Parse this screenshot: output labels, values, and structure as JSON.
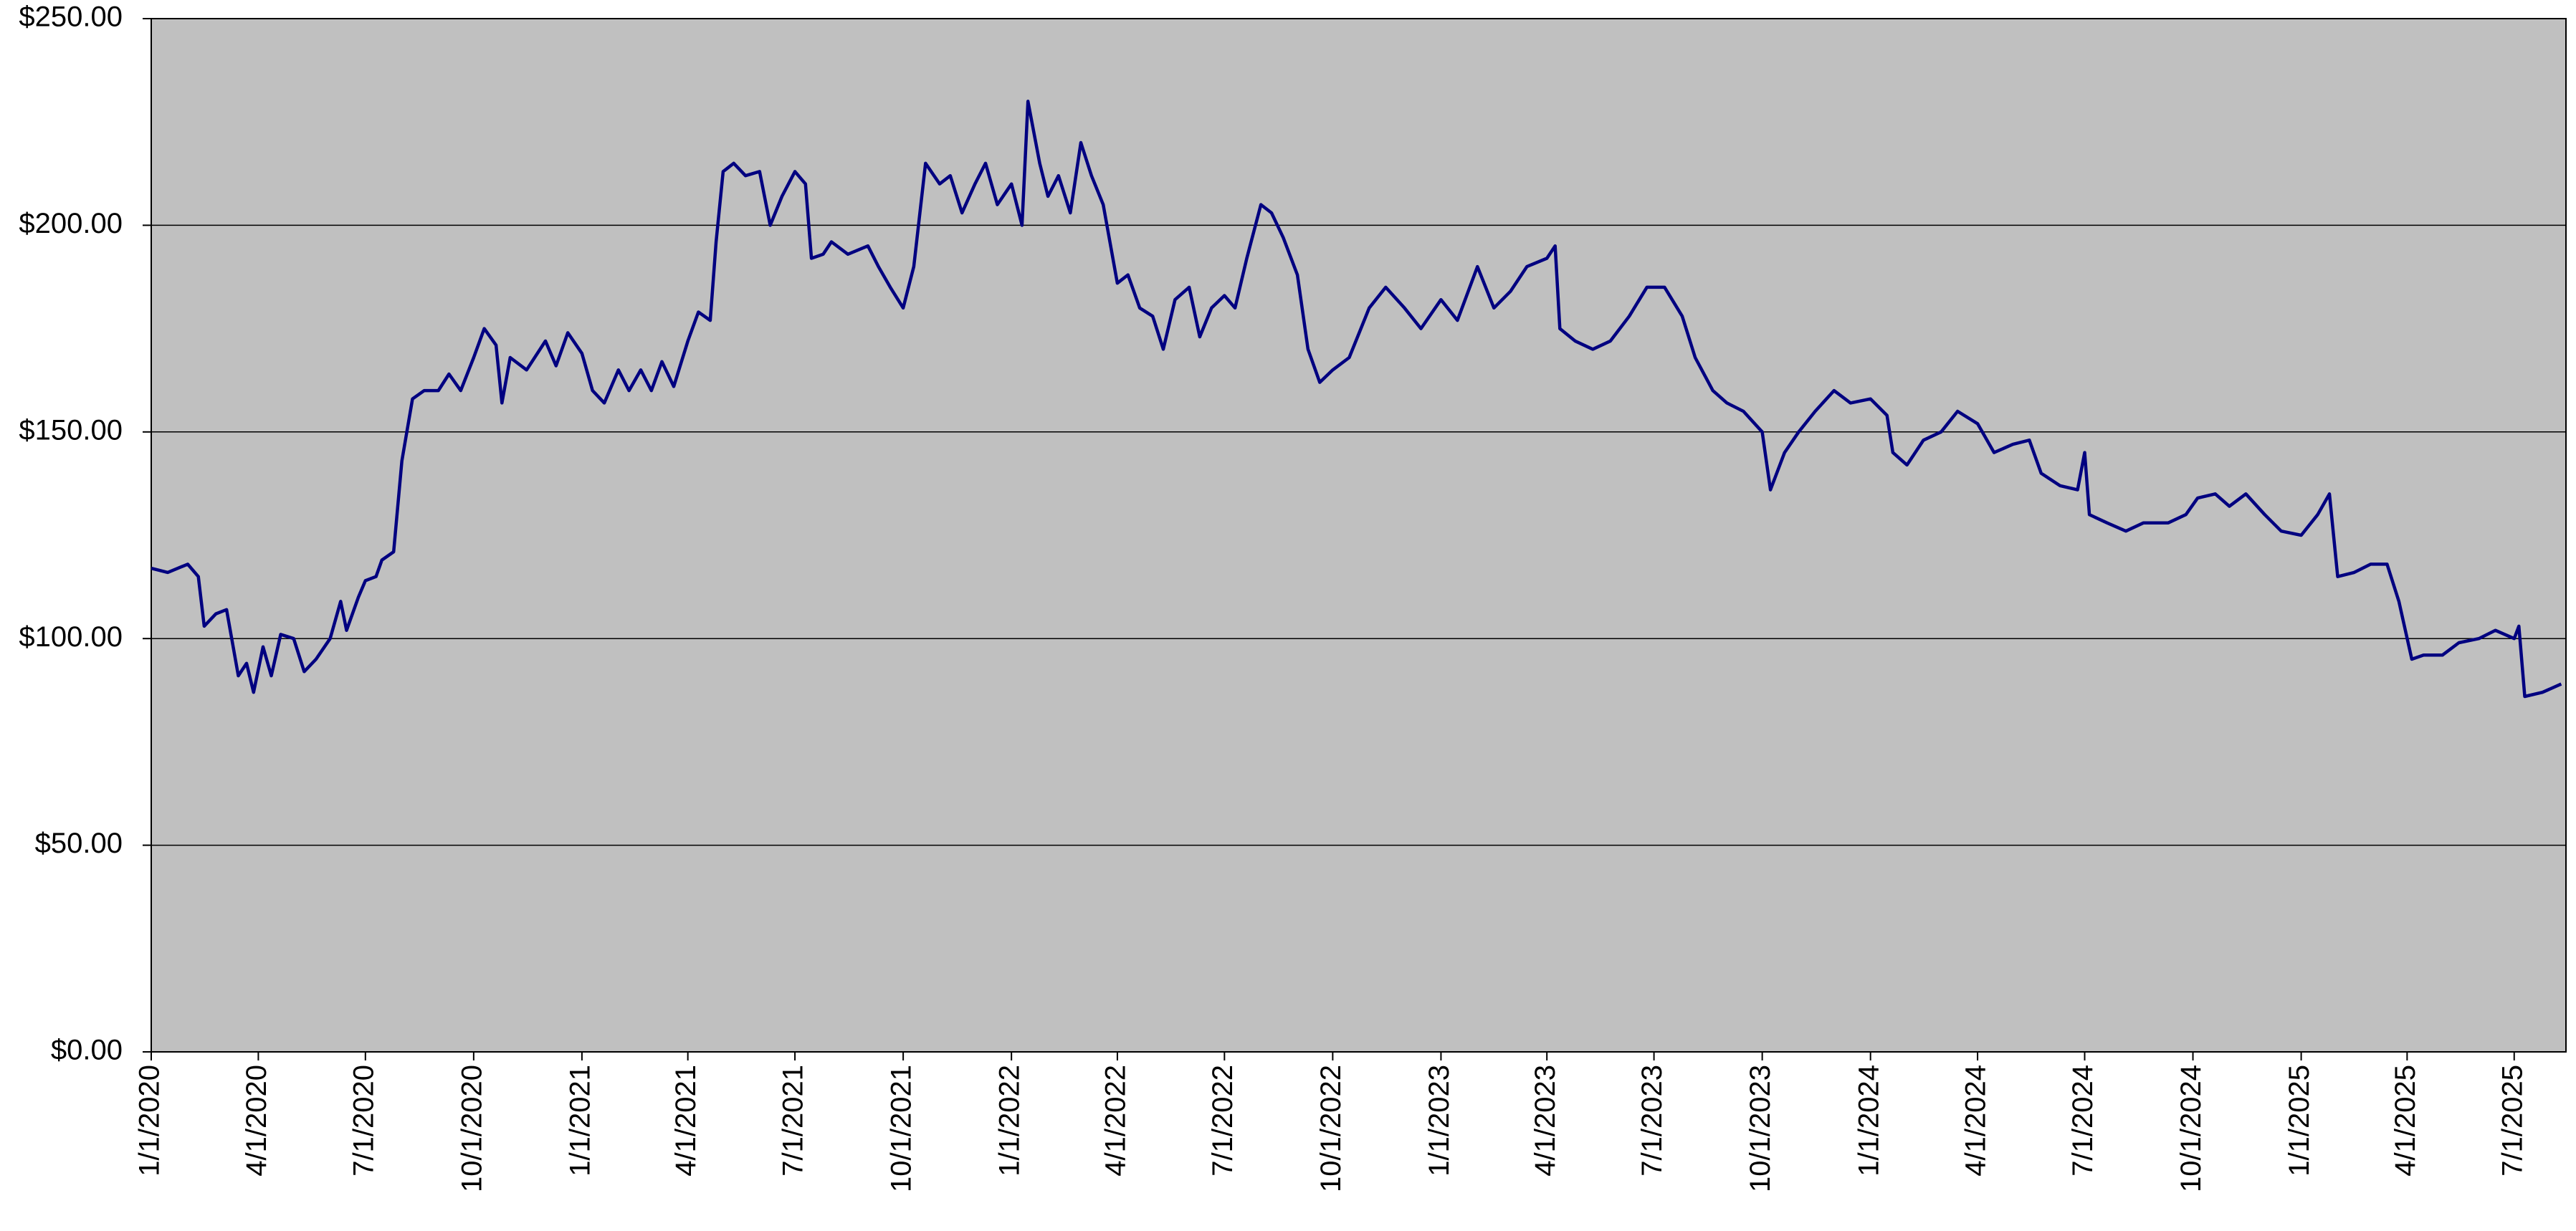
{
  "chart_data": {
    "type": "line",
    "x": [
      "2020-01-01",
      "2020-01-15",
      "2020-02-01",
      "2020-02-10",
      "2020-02-15",
      "2020-02-25",
      "2020-03-05",
      "2020-03-15",
      "2020-03-22",
      "2020-03-28",
      "2020-04-05",
      "2020-04-12",
      "2020-04-20",
      "2020-05-01",
      "2020-05-10",
      "2020-05-20",
      "2020-06-01",
      "2020-06-10",
      "2020-06-15",
      "2020-06-25",
      "2020-07-01",
      "2020-07-10",
      "2020-07-15",
      "2020-07-25",
      "2020-08-01",
      "2020-08-10",
      "2020-08-20",
      "2020-09-01",
      "2020-09-10",
      "2020-09-20",
      "2020-10-01",
      "2020-10-10",
      "2020-10-20",
      "2020-10-25",
      "2020-11-01",
      "2020-11-15",
      "2020-12-01",
      "2020-12-10",
      "2020-12-20",
      "2021-01-01",
      "2021-01-10",
      "2021-01-20",
      "2021-02-01",
      "2021-02-10",
      "2021-02-20",
      "2021-03-01",
      "2021-03-10",
      "2021-03-20",
      "2021-04-01",
      "2021-04-10",
      "2021-04-20",
      "2021-04-25",
      "2021-05-01",
      "2021-05-10",
      "2021-05-20",
      "2021-06-01",
      "2021-06-10",
      "2021-06-20",
      "2021-07-01",
      "2021-07-10",
      "2021-07-15",
      "2021-07-25",
      "2021-08-01",
      "2021-08-15",
      "2021-09-01",
      "2021-09-10",
      "2021-09-20",
      "2021-10-01",
      "2021-10-10",
      "2021-10-20",
      "2021-11-01",
      "2021-11-10",
      "2021-11-20",
      "2021-12-01",
      "2021-12-10",
      "2021-12-20",
      "2022-01-01",
      "2022-01-10",
      "2022-01-15",
      "2022-01-25",
      "2022-02-01",
      "2022-02-10",
      "2022-02-20",
      "2022-03-01",
      "2022-03-10",
      "2022-03-20",
      "2022-04-01",
      "2022-04-10",
      "2022-04-20",
      "2022-05-01",
      "2022-05-10",
      "2022-05-20",
      "2022-06-01",
      "2022-06-10",
      "2022-06-20",
      "2022-07-01",
      "2022-07-10",
      "2022-07-20",
      "2022-08-01",
      "2022-08-10",
      "2022-08-20",
      "2022-09-01",
      "2022-09-10",
      "2022-09-20",
      "2022-10-01",
      "2022-10-15",
      "2022-11-01",
      "2022-11-15",
      "2022-12-01",
      "2022-12-15",
      "2023-01-01",
      "2023-01-15",
      "2023-02-01",
      "2023-02-15",
      "2023-03-01",
      "2023-03-15",
      "2023-04-01",
      "2023-04-08",
      "2023-04-12",
      "2023-04-25",
      "2023-05-10",
      "2023-05-25",
      "2023-06-10",
      "2023-06-25",
      "2023-07-10",
      "2023-07-25",
      "2023-08-05",
      "2023-08-20",
      "2023-09-01",
      "2023-09-15",
      "2023-10-01",
      "2023-10-08",
      "2023-10-20",
      "2023-11-01",
      "2023-11-15",
      "2023-12-01",
      "2023-12-15",
      "2024-01-01",
      "2024-01-15",
      "2024-01-20",
      "2024-02-01",
      "2024-02-15",
      "2024-03-01",
      "2024-03-15",
      "2024-04-01",
      "2024-04-15",
      "2024-05-01",
      "2024-05-15",
      "2024-05-25",
      "2024-06-10",
      "2024-06-25",
      "2024-07-01",
      "2024-07-05",
      "2024-07-20",
      "2024-08-05",
      "2024-08-20",
      "2024-09-10",
      "2024-09-25",
      "2024-10-05",
      "2024-10-20",
      "2024-11-01",
      "2024-11-15",
      "2024-12-01",
      "2024-12-15",
      "2025-01-01",
      "2025-01-15",
      "2025-01-25",
      "2025-02-01",
      "2025-02-15",
      "2025-03-01",
      "2025-03-15",
      "2025-03-25",
      "2025-04-05",
      "2025-04-15",
      "2025-05-01",
      "2025-05-15",
      "2025-06-01",
      "2025-06-15",
      "2025-07-01",
      "2025-07-05",
      "2025-07-10",
      "2025-07-25",
      "2025-08-10"
    ],
    "values": [
      117,
      116,
      118,
      115,
      103,
      106,
      107,
      91,
      94,
      87,
      98,
      91,
      101,
      100,
      92,
      95,
      100,
      109,
      102,
      110,
      114,
      115,
      119,
      121,
      143,
      158,
      160,
      160,
      164,
      160,
      168,
      175,
      171,
      157,
      168,
      165,
      172,
      166,
      174,
      169,
      160,
      157,
      165,
      160,
      165,
      160,
      167,
      161,
      172,
      179,
      177,
      196,
      213,
      215,
      212,
      213,
      200,
      207,
      213,
      210,
      192,
      193,
      196,
      193,
      195,
      190,
      185,
      180,
      190,
      215,
      210,
      212,
      203,
      210,
      215,
      205,
      210,
      200,
      230,
      215,
      207,
      212,
      203,
      220,
      212,
      205,
      186,
      188,
      180,
      178,
      170,
      182,
      185,
      173,
      180,
      183,
      180,
      192,
      205,
      203,
      197,
      188,
      170,
      162,
      165,
      168,
      180,
      185,
      180,
      175,
      182,
      177,
      190,
      180,
      184,
      190,
      192,
      195,
      175,
      172,
      170,
      172,
      178,
      185,
      185,
      178,
      168,
      160,
      157,
      155,
      150,
      136,
      145,
      150,
      155,
      160,
      157,
      158,
      154,
      145,
      142,
      148,
      150,
      155,
      152,
      145,
      147,
      148,
      140,
      137,
      136,
      145,
      130,
      128,
      126,
      128,
      128,
      130,
      134,
      135,
      132,
      135,
      130,
      126,
      125,
      130,
      135,
      115,
      116,
      118,
      118,
      109,
      95,
      96,
      96,
      99,
      100,
      102,
      100,
      103,
      86,
      87,
      89
    ],
    "color": "#000080",
    "xlim": [
      "2020-01-01",
      "2025-08-14"
    ],
    "xticks": [
      {
        "value": "2020-01-01",
        "label": "1/1/2020"
      },
      {
        "value": "2020-04-01",
        "label": "4/1/2020"
      },
      {
        "value": "2020-07-01",
        "label": "7/1/2020"
      },
      {
        "value": "2020-10-01",
        "label": "10/1/2020"
      },
      {
        "value": "2021-01-01",
        "label": "1/1/2021"
      },
      {
        "value": "2021-04-01",
        "label": "4/1/2021"
      },
      {
        "value": "2021-07-01",
        "label": "7/1/2021"
      },
      {
        "value": "2021-10-01",
        "label": "10/1/2021"
      },
      {
        "value": "2022-01-01",
        "label": "1/1/2022"
      },
      {
        "value": "2022-04-01",
        "label": "4/1/2022"
      },
      {
        "value": "2022-07-01",
        "label": "7/1/2022"
      },
      {
        "value": "2022-10-01",
        "label": "10/1/2022"
      },
      {
        "value": "2023-01-01",
        "label": "1/1/2023"
      },
      {
        "value": "2023-04-01",
        "label": "4/1/2023"
      },
      {
        "value": "2023-07-01",
        "label": "7/1/2023"
      },
      {
        "value": "2023-10-01",
        "label": "10/1/2023"
      },
      {
        "value": "2024-01-01",
        "label": "1/1/2024"
      },
      {
        "value": "2024-04-01",
        "label": "4/1/2024"
      },
      {
        "value": "2024-07-01",
        "label": "7/1/2024"
      },
      {
        "value": "2024-10-01",
        "label": "10/1/2024"
      },
      {
        "value": "2025-01-01",
        "label": "1/1/2025"
      },
      {
        "value": "2025-04-01",
        "label": "4/1/2025"
      },
      {
        "value": "2025-07-01",
        "label": "7/1/2025"
      }
    ],
    "ylim": [
      0,
      250
    ],
    "yticks": [
      {
        "value": 0,
        "label": "$0.00"
      },
      {
        "value": 50,
        "label": "$50.00"
      },
      {
        "value": 100,
        "label": "$100.00"
      },
      {
        "value": 150,
        "label": "$150.00"
      },
      {
        "value": 200,
        "label": "$200.00"
      },
      {
        "value": 250,
        "label": "$250.00"
      }
    ],
    "grid": true
  }
}
